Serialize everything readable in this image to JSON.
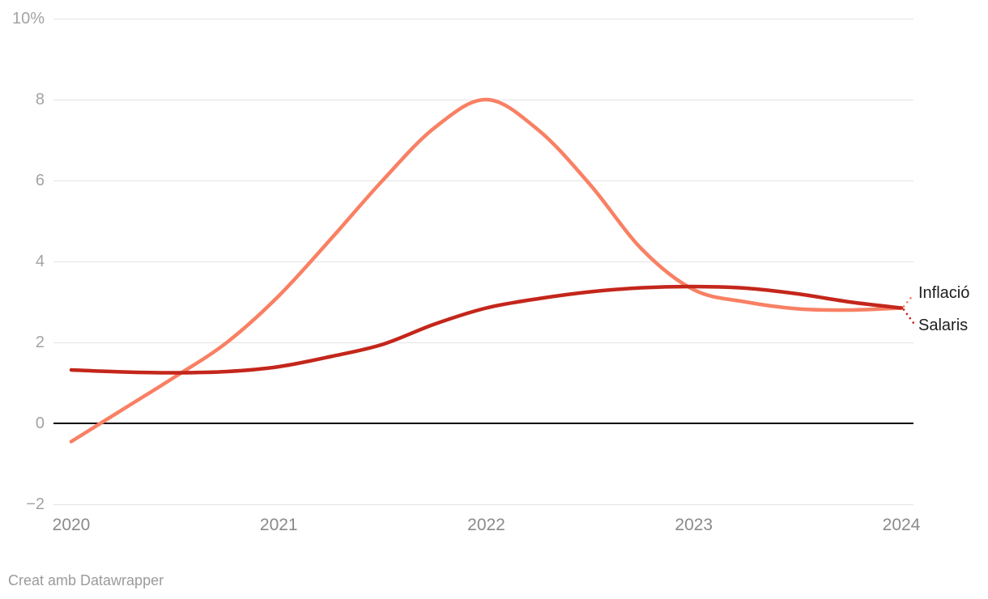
{
  "chart_data": {
    "type": "line",
    "title": "",
    "xlabel": "",
    "ylabel": "",
    "xlim": [
      2020,
      2024
    ],
    "ylim": [
      -2,
      10
    ],
    "grid": true,
    "zero_line_value": 0,
    "legend_position": "end-labels-right",
    "x": [
      2020,
      2020.25,
      2020.5,
      2020.75,
      2021,
      2021.25,
      2021.5,
      2021.75,
      2022,
      2022.25,
      2022.5,
      2022.75,
      2023,
      2023.25,
      2023.5,
      2023.75,
      2024
    ],
    "series": [
      {
        "name": "Inflació",
        "color": "#f98064",
        "values": [
          -0.45,
          0.35,
          1.15,
          2.0,
          3.15,
          4.55,
          6.0,
          7.3,
          8.0,
          7.25,
          5.9,
          4.3,
          3.3,
          3.0,
          2.83,
          2.8,
          2.85
        ]
      },
      {
        "name": "Salaris",
        "color": "#c4261b",
        "values": [
          1.32,
          1.27,
          1.25,
          1.28,
          1.4,
          1.65,
          1.95,
          2.45,
          2.85,
          3.08,
          3.25,
          3.35,
          3.38,
          3.34,
          3.2,
          3.0,
          2.85
        ]
      }
    ],
    "y_ticks": [
      {
        "value": 10,
        "label": "10%"
      },
      {
        "value": 8,
        "label": "8"
      },
      {
        "value": 6,
        "label": "6"
      },
      {
        "value": 4,
        "label": "4"
      },
      {
        "value": 2,
        "label": "2"
      },
      {
        "value": 0,
        "label": "0"
      },
      {
        "value": -2,
        "label": "−2"
      }
    ],
    "x_ticks": [
      {
        "value": 2020,
        "label": "2020"
      },
      {
        "value": 2021,
        "label": "2021"
      },
      {
        "value": 2022,
        "label": "2022"
      },
      {
        "value": 2023,
        "label": "2023"
      },
      {
        "value": 2024,
        "label": "2024"
      }
    ]
  },
  "colors": {
    "background": "#ffffff",
    "grid": "#e3e3e3",
    "zero_line": "#0b0b0b",
    "y_tick_text": "#a3a3a3",
    "x_tick_text": "#8a8a8a",
    "end_label_text": "#1d1d1d",
    "attribution_text": "#9b9b9b"
  },
  "footer": {
    "attribution": "Creat amb Datawrapper"
  }
}
